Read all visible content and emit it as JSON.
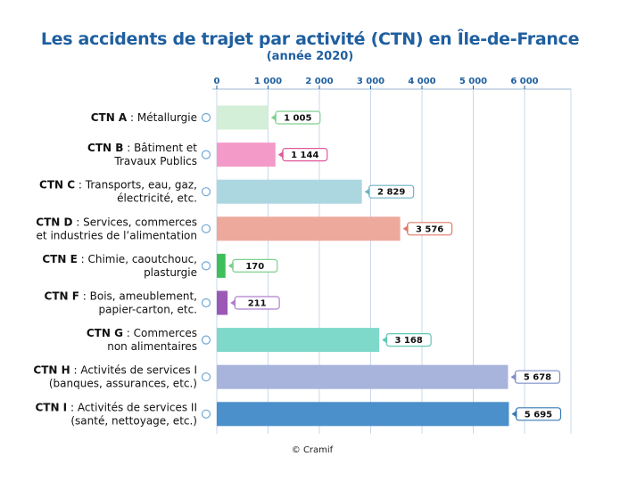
{
  "chart_data": {
    "type": "bar",
    "orientation": "horizontal",
    "title": "Les accidents de trajet par activité (CTN) en Île-de-France",
    "subtitle": "(année 2020)",
    "xlim": [
      0,
      6600
    ],
    "ticks": [
      0,
      1000,
      2000,
      3000,
      4000,
      5000,
      6000
    ],
    "tick_labels": [
      "0",
      "1 000",
      "2 000",
      "3 000",
      "4 000",
      "5 000",
      "6 000"
    ],
    "grid": true,
    "categories": [
      {
        "code": "CTN A",
        "lines": [
          " : Métallurgie"
        ]
      },
      {
        "code": "CTN B",
        "lines": [
          " : Bâtiment et",
          "Travaux Publics"
        ]
      },
      {
        "code": "CTN C",
        "lines": [
          " : Transports, eau, gaz,",
          "électricité, etc."
        ]
      },
      {
        "code": "CTN D",
        "lines": [
          " : Services, commerces",
          "et industries de l’alimentation"
        ]
      },
      {
        "code": "CTN E",
        "lines": [
          " : Chimie, caoutchouc,",
          "plasturgie"
        ]
      },
      {
        "code": "CTN F",
        "lines": [
          " : Bois, ameublement,",
          "papier-carton, etc."
        ]
      },
      {
        "code": "CTN G",
        "lines": [
          " : Commerces",
          "non alimentaires"
        ]
      },
      {
        "code": "CTN H",
        "lines": [
          " : Activités de services I",
          "(banques, assurances, etc.)"
        ]
      },
      {
        "code": "CTN I",
        "lines": [
          " : Activités de services II",
          "(santé, nettoyage, etc.)"
        ]
      }
    ],
    "values": [
      1005,
      1144,
      2829,
      3576,
      170,
      211,
      3168,
      5678,
      5695
    ],
    "value_labels": [
      "1 005",
      "1 144",
      "2 829",
      "3 576",
      "170",
      "211",
      "3 168",
      "5 678",
      "5 695"
    ],
    "colors": [
      "#d3efd7",
      "#f49ac9",
      "#acd7e1",
      "#eea99d",
      "#3fbf5a",
      "#9b59b6",
      "#7fd9cb",
      "#a8b4dc",
      "#4b8fcb"
    ],
    "label_border_colors": [
      "#7fcf8f",
      "#e05a9c",
      "#6fb3c6",
      "#e07a6a",
      "#7fcf8f",
      "#b07fcf",
      "#5fc9b5",
      "#7f8fc9",
      "#3a78b5"
    ],
    "credit": "© Cramif"
  }
}
